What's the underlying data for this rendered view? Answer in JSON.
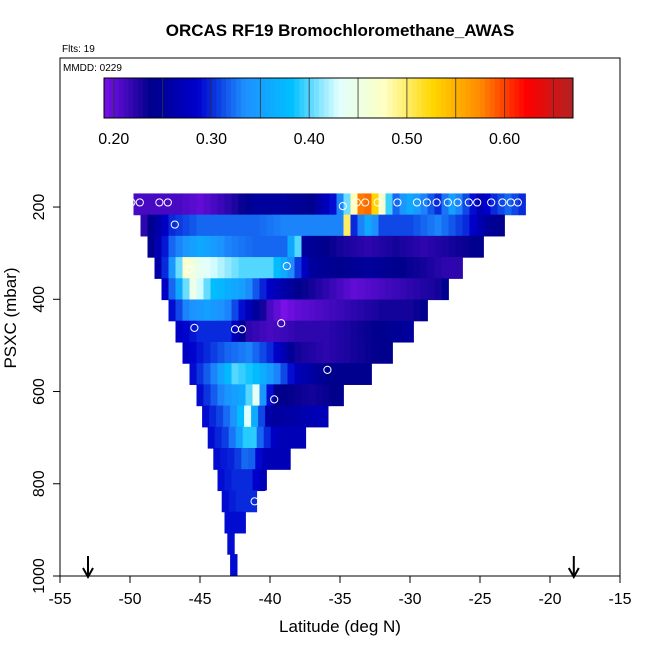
{
  "chart_data": {
    "type": "heatmap",
    "title": "ORCAS RF19 Bromochloromethane_AWAS",
    "annotations": {
      "flights": "Flts: 19",
      "date": "MMDD: 0229"
    },
    "xlabel": "Latitude (deg N)",
    "ylabel": "PSXC (mbar)",
    "xlim": [
      -55,
      -15
    ],
    "ylim": [
      1000,
      50
    ],
    "y_reversed": true,
    "x_ticks": [
      -55,
      -50,
      -45,
      -40,
      -35,
      -30,
      -25,
      -20,
      -15
    ],
    "y_ticks": [
      200,
      400,
      600,
      800,
      1000
    ],
    "colorbar": {
      "range": [
        0.19,
        0.67
      ],
      "ticks": [
        0.2,
        0.3,
        0.4,
        0.5,
        0.6
      ],
      "tick_labels": [
        "0.20",
        "0.30",
        "0.40",
        "0.50",
        "0.60"
      ],
      "colors": [
        "#7a10e8",
        "#00008b",
        "#0000cd",
        "#1e90ff",
        "#00bfff",
        "#e0ffff",
        "#ffffc0",
        "#ffd700",
        "#ff8c00",
        "#ff0000",
        "#b22222"
      ]
    },
    "grid": false,
    "legend": "none",
    "arrows_at_latitude": [
      -53,
      -18.3
    ],
    "rows": [
      {
        "p": 190,
        "lat": [
          -49.5,
          -22
        ],
        "vals": [
          [
            -49.5,
            0.21
          ],
          [
            -48,
            0.21
          ],
          [
            -46.5,
            0.21
          ],
          [
            -45,
            0.2
          ],
          [
            -43,
            0.22
          ],
          [
            -41,
            0.25
          ],
          [
            -39,
            0.25
          ],
          [
            -37,
            0.24
          ],
          [
            -35.2,
            0.3
          ],
          [
            -34,
            0.48
          ],
          [
            -33.3,
            0.62
          ],
          [
            -32.6,
            0.54
          ],
          [
            -31.8,
            0.44
          ],
          [
            -31,
            0.32
          ],
          [
            -30,
            0.36
          ],
          [
            -29,
            0.33
          ],
          [
            -28,
            0.3
          ],
          [
            -27,
            0.35
          ],
          [
            -26,
            0.31
          ],
          [
            -25,
            0.27
          ],
          [
            -24,
            0.3
          ],
          [
            -23,
            0.32
          ],
          [
            -22,
            0.3
          ]
        ]
      },
      {
        "p": 236,
        "lat": [
          -49,
          -23.5
        ],
        "vals": [
          [
            -49,
            0.22
          ],
          [
            -47,
            0.3
          ],
          [
            -45,
            0.32
          ],
          [
            -43,
            0.32
          ],
          [
            -41,
            0.32
          ],
          [
            -39,
            0.33
          ],
          [
            -37,
            0.33
          ],
          [
            -35,
            0.33
          ],
          [
            -34.5,
            0.5
          ],
          [
            -34,
            0.3
          ],
          [
            -33,
            0.36
          ],
          [
            -32,
            0.31
          ],
          [
            -30,
            0.31
          ],
          [
            -28,
            0.33
          ],
          [
            -26,
            0.3
          ],
          [
            -24.5,
            0.25
          ],
          [
            -23.5,
            0.24
          ]
        ]
      },
      {
        "p": 282,
        "lat": [
          -48.5,
          -25
        ],
        "vals": [
          [
            -48.5,
            0.24
          ],
          [
            -47,
            0.32
          ],
          [
            -45,
            0.36
          ],
          [
            -43,
            0.33
          ],
          [
            -41,
            0.32
          ],
          [
            -39,
            0.32
          ],
          [
            -38,
            0.4
          ],
          [
            -37.5,
            0.25
          ],
          [
            -35,
            0.23
          ],
          [
            -33,
            0.22
          ],
          [
            -31,
            0.23
          ],
          [
            -29,
            0.22
          ],
          [
            -27,
            0.23
          ],
          [
            -25,
            0.24
          ]
        ]
      },
      {
        "p": 328,
        "lat": [
          -48,
          -26.5
        ],
        "vals": [
          [
            -48,
            0.26
          ],
          [
            -47,
            0.34
          ],
          [
            -46,
            0.47
          ],
          [
            -45,
            0.44
          ],
          [
            -43.5,
            0.42
          ],
          [
            -42,
            0.4
          ],
          [
            -40,
            0.4
          ],
          [
            -39,
            0.36
          ],
          [
            -37,
            0.25
          ],
          [
            -35,
            0.24
          ],
          [
            -33,
            0.25
          ],
          [
            -31,
            0.24
          ],
          [
            -29,
            0.23
          ],
          [
            -27.5,
            0.22
          ],
          [
            -26.5,
            0.22
          ]
        ]
      },
      {
        "p": 374,
        "lat": [
          -47.5,
          -27.5
        ],
        "vals": [
          [
            -47.5,
            0.28
          ],
          [
            -46.5,
            0.36
          ],
          [
            -45.5,
            0.45
          ],
          [
            -44,
            0.38
          ],
          [
            -42,
            0.35
          ],
          [
            -40,
            0.28
          ],
          [
            -38,
            0.24
          ],
          [
            -36,
            0.22
          ],
          [
            -34,
            0.2
          ],
          [
            -32,
            0.21
          ],
          [
            -30,
            0.22
          ],
          [
            -28,
            0.23
          ],
          [
            -27.5,
            0.24
          ]
        ]
      },
      {
        "p": 420,
        "lat": [
          -47,
          -29
        ],
        "vals": [
          [
            -47,
            0.29
          ],
          [
            -46,
            0.33
          ],
          [
            -44.5,
            0.35
          ],
          [
            -43,
            0.33
          ],
          [
            -41.5,
            0.27
          ],
          [
            -40,
            0.21
          ],
          [
            -39,
            0.19
          ],
          [
            -38,
            0.2
          ],
          [
            -36,
            0.21
          ],
          [
            -34,
            0.22
          ],
          [
            -32,
            0.23
          ],
          [
            -30,
            0.23
          ],
          [
            -29,
            0.24
          ]
        ]
      },
      {
        "p": 466,
        "lat": [
          -46.5,
          -30.2
        ],
        "vals": [
          [
            -46.5,
            0.28
          ],
          [
            -45,
            0.3
          ],
          [
            -43,
            0.3
          ],
          [
            -41.5,
            0.22
          ],
          [
            -40,
            0.21
          ],
          [
            -38,
            0.22
          ],
          [
            -36,
            0.22
          ],
          [
            -34,
            0.23
          ],
          [
            -32,
            0.24
          ],
          [
            -30.2,
            0.25
          ]
        ]
      },
      {
        "p": 512,
        "lat": [
          -46,
          -31.8
        ],
        "vals": [
          [
            -46,
            0.28
          ],
          [
            -44.5,
            0.3
          ],
          [
            -43,
            0.32
          ],
          [
            -41.5,
            0.33
          ],
          [
            -40,
            0.3
          ],
          [
            -38,
            0.23
          ],
          [
            -36,
            0.22
          ],
          [
            -34,
            0.23
          ],
          [
            -31.8,
            0.24
          ]
        ]
      },
      {
        "p": 558,
        "lat": [
          -45.5,
          -33.4
        ],
        "vals": [
          [
            -45.5,
            0.29
          ],
          [
            -44,
            0.33
          ],
          [
            -42.5,
            0.4
          ],
          [
            -41,
            0.38
          ],
          [
            -39.5,
            0.33
          ],
          [
            -38,
            0.27
          ],
          [
            -36,
            0.24
          ],
          [
            -33.4,
            0.24
          ]
        ]
      },
      {
        "p": 604,
        "lat": [
          -45,
          -35
        ],
        "vals": [
          [
            -45,
            0.29
          ],
          [
            -43.5,
            0.33
          ],
          [
            -42,
            0.36
          ],
          [
            -41,
            0.44
          ],
          [
            -40.5,
            0.34
          ],
          [
            -39.5,
            0.24
          ],
          [
            -37,
            0.23
          ],
          [
            -35,
            0.24
          ]
        ]
      },
      {
        "p": 650,
        "lat": [
          -44.6,
          -36.5
        ],
        "vals": [
          [
            -44.6,
            0.29
          ],
          [
            -43.5,
            0.31
          ],
          [
            -42.5,
            0.34
          ],
          [
            -41.6,
            0.43
          ],
          [
            -41,
            0.35
          ],
          [
            -40,
            0.25
          ],
          [
            -38,
            0.26
          ],
          [
            -36.5,
            0.27
          ]
        ]
      },
      {
        "p": 696,
        "lat": [
          -44.2,
          -37.8
        ],
        "vals": [
          [
            -44.2,
            0.29
          ],
          [
            -43,
            0.31
          ],
          [
            -42,
            0.36
          ],
          [
            -41.4,
            0.42
          ],
          [
            -40.7,
            0.32
          ],
          [
            -39.5,
            0.27
          ],
          [
            -37.8,
            0.27
          ]
        ]
      },
      {
        "p": 742,
        "lat": [
          -43.8,
          -39.2
        ],
        "vals": [
          [
            -43.8,
            0.29
          ],
          [
            -42.5,
            0.3
          ],
          [
            -41.5,
            0.33
          ],
          [
            -40.5,
            0.27
          ],
          [
            -39.2,
            0.27
          ]
        ]
      },
      {
        "p": 788,
        "lat": [
          -43.5,
          -40.5
        ],
        "vals": [
          [
            -43.5,
            0.29
          ],
          [
            -42.5,
            0.3
          ],
          [
            -41.5,
            0.3
          ],
          [
            -40.5,
            0.27
          ]
        ]
      },
      {
        "p": 834,
        "lat": [
          -43.2,
          -41.5
        ],
        "vals": [
          [
            -43.2,
            0.29
          ],
          [
            -42.3,
            0.3
          ],
          [
            -41.5,
            0.3
          ]
        ]
      },
      {
        "p": 880,
        "lat": [
          -43,
          -42
        ],
        "vals": [
          [
            -43,
            0.29
          ],
          [
            -42,
            0.29
          ]
        ]
      },
      {
        "p": 926,
        "lat": [
          -42.8,
          -42.8
        ],
        "vals": [
          [
            -42.8,
            0.29
          ]
        ]
      },
      {
        "p": 972,
        "lat": [
          -42.6,
          -42.6
        ],
        "vals": [
          [
            -42.6,
            0.29
          ]
        ]
      }
    ],
    "samples": [
      {
        "lat": -49.9,
        "p": 190
      },
      {
        "lat": -49.3,
        "p": 190
      },
      {
        "lat": -47.9,
        "p": 190
      },
      {
        "lat": -47.3,
        "p": 190
      },
      {
        "lat": -34.8,
        "p": 198
      },
      {
        "lat": -33.8,
        "p": 190
      },
      {
        "lat": -33.2,
        "p": 190
      },
      {
        "lat": -32.3,
        "p": 190
      },
      {
        "lat": -30.9,
        "p": 190
      },
      {
        "lat": -29.5,
        "p": 190
      },
      {
        "lat": -28.8,
        "p": 190
      },
      {
        "lat": -28.1,
        "p": 190
      },
      {
        "lat": -27.3,
        "p": 190
      },
      {
        "lat": -26.6,
        "p": 190
      },
      {
        "lat": -25.8,
        "p": 190
      },
      {
        "lat": -25.2,
        "p": 190
      },
      {
        "lat": -24.2,
        "p": 190
      },
      {
        "lat": -23.4,
        "p": 190
      },
      {
        "lat": -22.8,
        "p": 190
      },
      {
        "lat": -22.3,
        "p": 190
      },
      {
        "lat": -46.8,
        "p": 238
      },
      {
        "lat": -45.8,
        "p": 335
      },
      {
        "lat": -38.8,
        "p": 328
      },
      {
        "lat": -45.4,
        "p": 462
      },
      {
        "lat": -42.5,
        "p": 465
      },
      {
        "lat": -42,
        "p": 465
      },
      {
        "lat": -39.2,
        "p": 452
      },
      {
        "lat": -35.9,
        "p": 553
      },
      {
        "lat": -39.7,
        "p": 617
      },
      {
        "lat": -41.1,
        "p": 838
      },
      {
        "lat": -40.2,
        "p": 823
      },
      {
        "lat": -43.9,
        "p": 997
      }
    ]
  }
}
